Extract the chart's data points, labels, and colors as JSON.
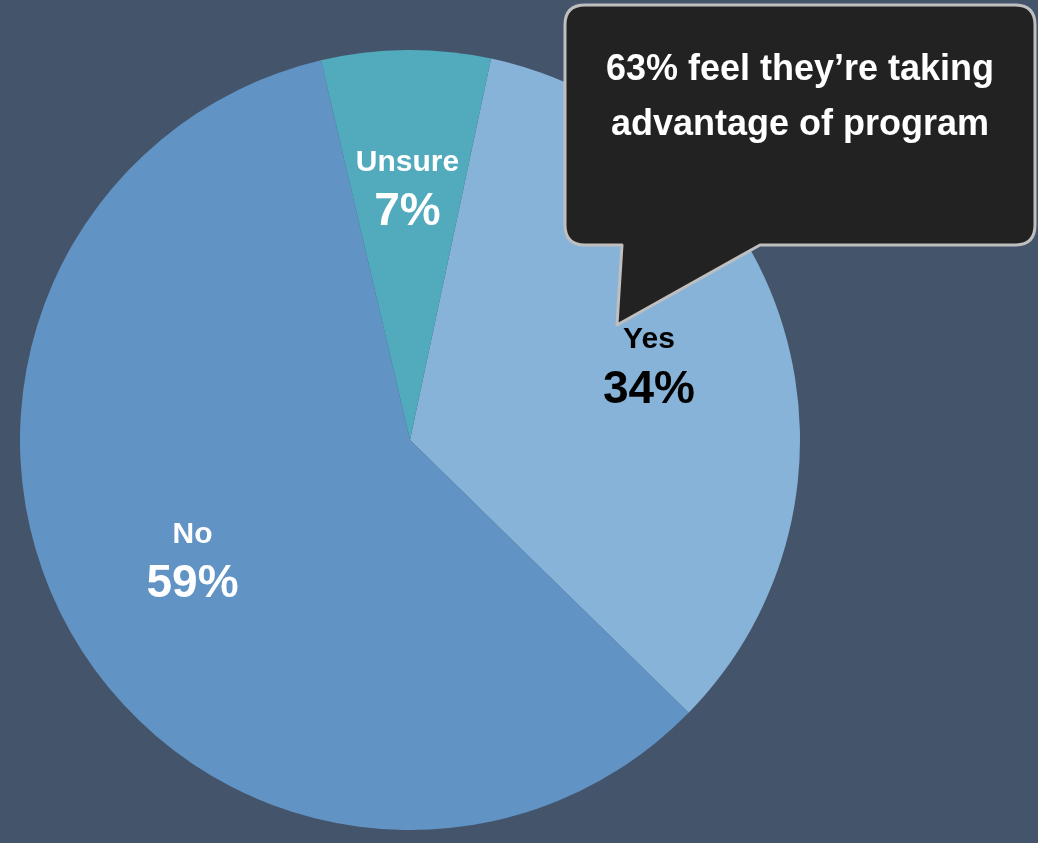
{
  "chart_data": {
    "type": "pie",
    "categories": [
      "Yes",
      "No",
      "Unsure"
    ],
    "values": [
      34,
      59,
      7
    ],
    "value_labels": [
      "34%",
      "59%",
      "7%"
    ],
    "colors": [
      "#88b3d8",
      "#6193c4",
      "#52aabd"
    ],
    "legend": false,
    "annotations": [
      "63% feel they’re taking advantage of program"
    ]
  }
}
